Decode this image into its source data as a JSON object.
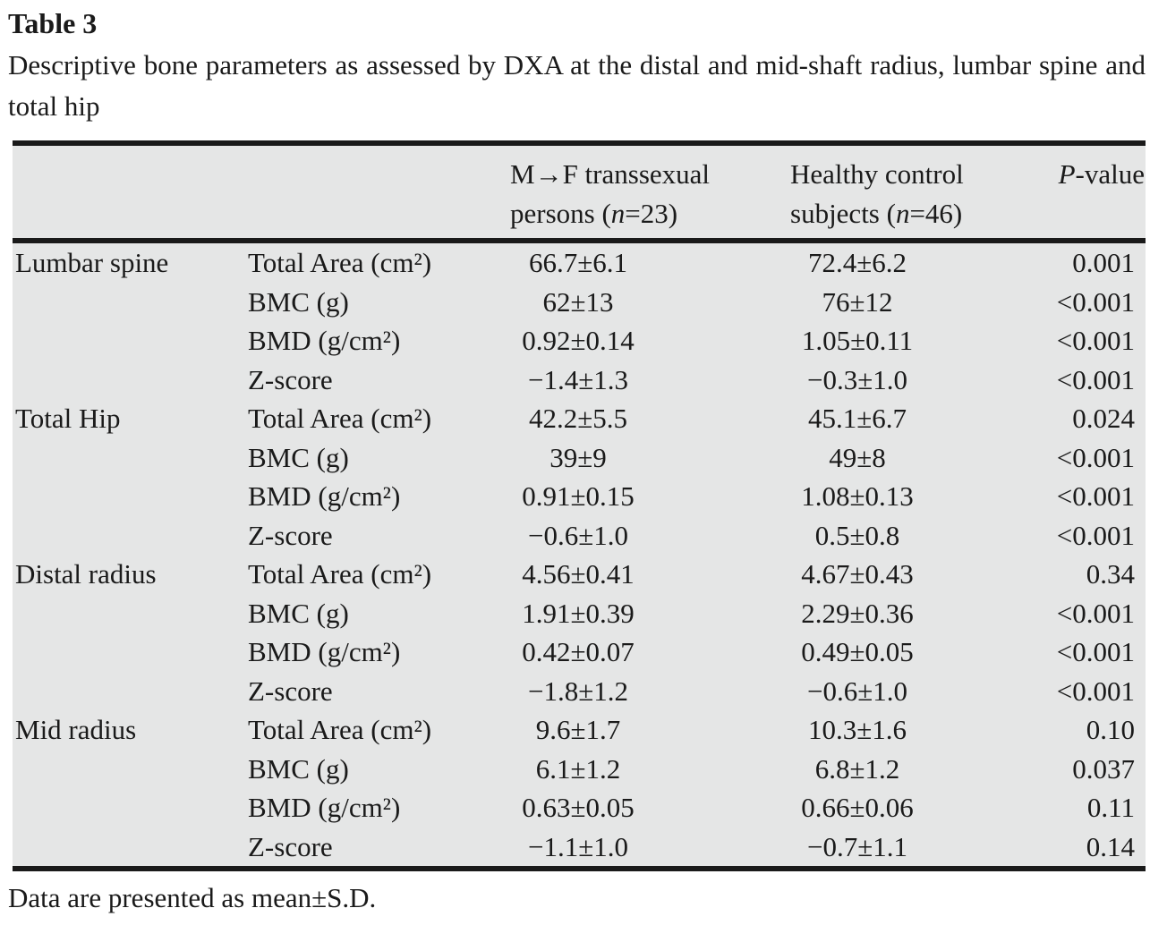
{
  "page": {
    "title": "Table 3",
    "caption": "Descriptive bone parameters as assessed by DXA at the distal and mid-shaft radius, lumbar spine and total hip",
    "footnote": "Data are presented as mean±S.D."
  },
  "colors": {
    "table_background": "#e5e6e6",
    "rule": "#1a1a1a",
    "text": "#1a1a1a",
    "page_background": "#ffffff"
  },
  "header": {
    "group_col": "",
    "param_col": "",
    "mtf": {
      "line1": "M→F transsexual",
      "line2_pre": "persons (",
      "n": "n",
      "line2_post": "=23)"
    },
    "control": {
      "line1": "Healthy control",
      "line2_pre": "subjects (",
      "n": "n",
      "line2_post": "=46)"
    },
    "p": {
      "italic": "P",
      "rest": "-value"
    }
  },
  "rows": [
    {
      "group": "Lumbar spine",
      "param": "Total Area (cm²)",
      "mtf": "66.7±6.1",
      "control": "72.4±6.2",
      "p": "0.001"
    },
    {
      "group": "",
      "param": "BMC (g)",
      "mtf": "62±13",
      "control": "76±12",
      "p": "<0.001"
    },
    {
      "group": "",
      "param": "BMD (g/cm²)",
      "mtf": "0.92±0.14",
      "control": "1.05±0.11",
      "p": "<0.001"
    },
    {
      "group": "",
      "param": "Z-score",
      "mtf": "−1.4±1.3",
      "control": "−0.3±1.0",
      "p": "<0.001"
    },
    {
      "group": "Total Hip",
      "param": "Total Area (cm²)",
      "mtf": "42.2±5.5",
      "control": "45.1±6.7",
      "p": "0.024"
    },
    {
      "group": "",
      "param": "BMC (g)",
      "mtf": "39±9",
      "control": "49±8",
      "p": "<0.001"
    },
    {
      "group": "",
      "param": "BMD (g/cm²)",
      "mtf": "0.91±0.15",
      "control": "1.08±0.13",
      "p": "<0.001"
    },
    {
      "group": "",
      "param": "Z-score",
      "mtf": "−0.6±1.0",
      "control": "0.5±0.8",
      "p": "<0.001"
    },
    {
      "group": "Distal radius",
      "param": "Total Area (cm²)",
      "mtf": "4.56±0.41",
      "control": "4.67±0.43",
      "p": "0.34"
    },
    {
      "group": "",
      "param": "BMC (g)",
      "mtf": "1.91±0.39",
      "control": "2.29±0.36",
      "p": "<0.001"
    },
    {
      "group": "",
      "param": "BMD (g/cm²)",
      "mtf": "0.42±0.07",
      "control": "0.49±0.05",
      "p": "<0.001"
    },
    {
      "group": "",
      "param": "Z-score",
      "mtf": "−1.8±1.2",
      "control": "−0.6±1.0",
      "p": "<0.001"
    },
    {
      "group": "Mid radius",
      "param": "Total Area (cm²)",
      "mtf": "9.6±1.7",
      "control": "10.3±1.6",
      "p": "0.10"
    },
    {
      "group": "",
      "param": "BMC (g)",
      "mtf": "6.1±1.2",
      "control": "6.8±1.2",
      "p": "0.037"
    },
    {
      "group": "",
      "param": "BMD (g/cm²)",
      "mtf": "0.63±0.05",
      "control": "0.66±0.06",
      "p": "0.11"
    },
    {
      "group": "",
      "param": "Z-score",
      "mtf": "−1.1±1.0",
      "control": "−0.7±1.1",
      "p": "0.14"
    }
  ]
}
